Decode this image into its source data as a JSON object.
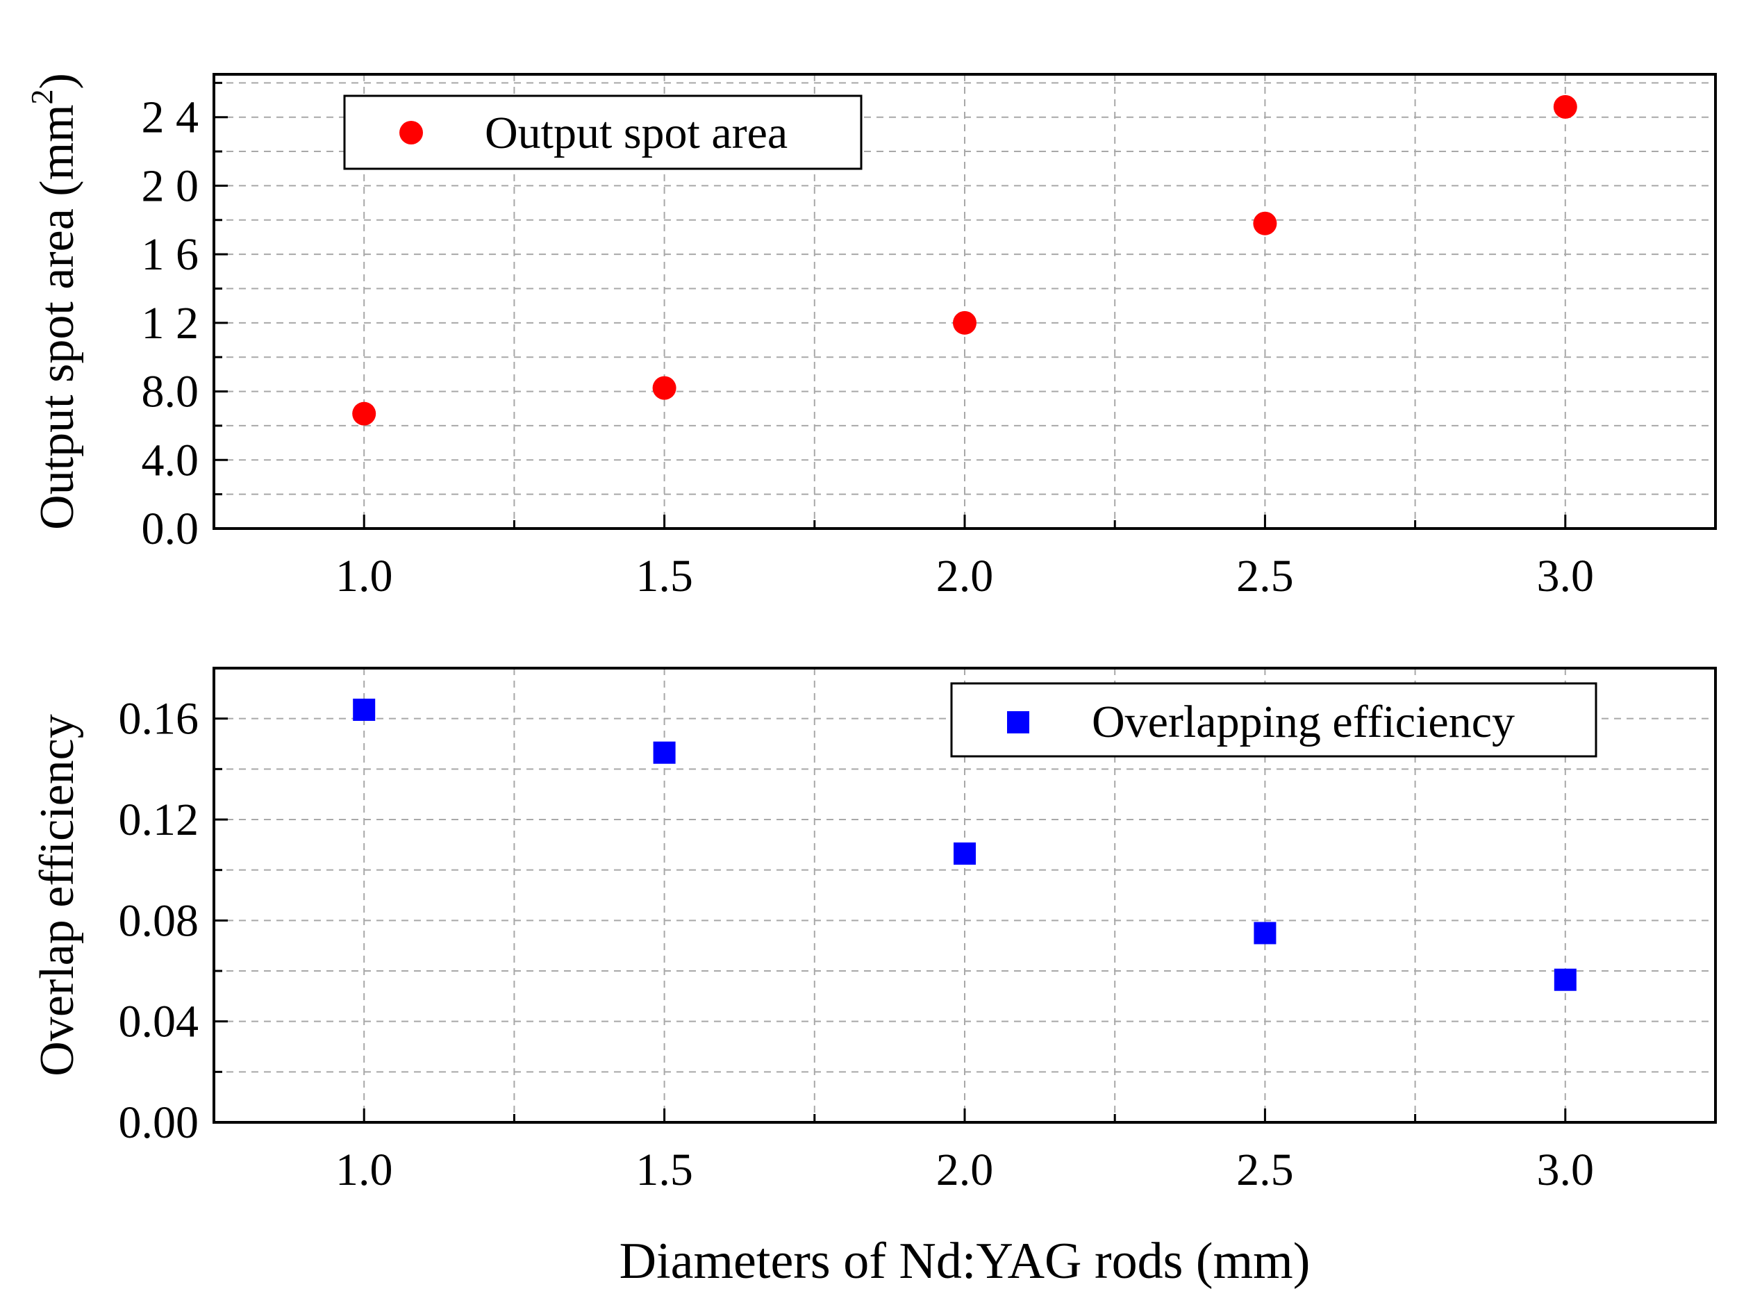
{
  "chart_data": [
    {
      "type": "scatter",
      "title": "",
      "xlabel": "",
      "ylabel": "Output spot area (mm²)",
      "ylabel_main": "Output spot area (mm",
      "ylabel_sup": "2",
      "ylabel_close": ")",
      "xlim": [
        0.75,
        3.25
      ],
      "ylim": [
        0,
        26.5
      ],
      "x_ticks": [
        1.0,
        1.5,
        2.0,
        2.5,
        3.0
      ],
      "x_tick_labels": [
        "1.0",
        "1.5",
        "2.0",
        "2.5",
        "3.0"
      ],
      "y_ticks": [
        0,
        4,
        8,
        12,
        16,
        20,
        24
      ],
      "y_tick_labels": [
        "0.0",
        "4.0",
        "8.0",
        "1 2",
        "1 6",
        "2 0",
        "2 4"
      ],
      "grid": true,
      "legend_position": "top-left",
      "series": [
        {
          "name": "Output spot area",
          "marker": "circle",
          "color": "#ff0000",
          "x": [
            1.0,
            1.5,
            2.0,
            2.5,
            3.0
          ],
          "y": [
            6.7,
            8.2,
            12.0,
            17.8,
            24.6
          ]
        }
      ]
    },
    {
      "type": "scatter",
      "title": "",
      "xlabel": "Diameters of Nd:YAG rods (mm)",
      "ylabel": "Overlap efficiency",
      "xlim": [
        0.75,
        3.25
      ],
      "ylim": [
        0,
        0.18
      ],
      "x_ticks": [
        1.0,
        1.5,
        2.0,
        2.5,
        3.0
      ],
      "x_tick_labels": [
        "1.0",
        "1.5",
        "2.0",
        "2.5",
        "3.0"
      ],
      "y_ticks": [
        0,
        0.04,
        0.08,
        0.12,
        0.16
      ],
      "y_tick_labels": [
        "0.00",
        "0.04",
        "0.08",
        "0.12",
        "0.16"
      ],
      "grid": true,
      "legend_position": "top-right",
      "series": [
        {
          "name": "Overlapping efficiency",
          "marker": "square",
          "color": "#0000ff",
          "x": [
            1.0,
            1.5,
            2.0,
            2.5,
            3.0
          ],
          "y": [
            0.1635,
            0.1465,
            0.1065,
            0.075,
            0.0565
          ]
        }
      ]
    }
  ]
}
